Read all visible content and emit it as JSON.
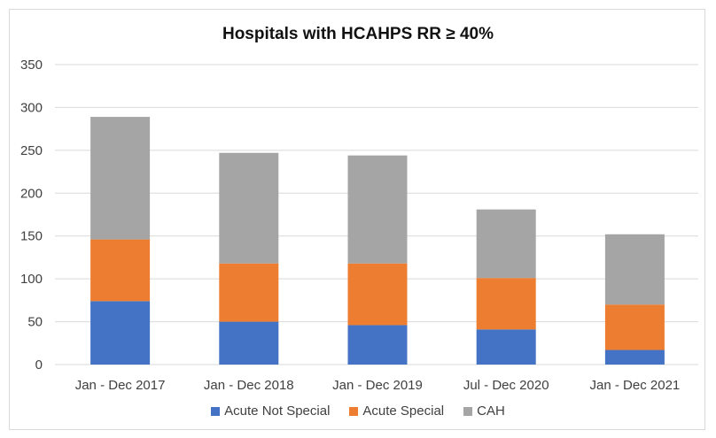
{
  "chart_data": {
    "type": "bar",
    "stacked": true,
    "title": "Hospitals with HCAHPS RR ≥ 40%",
    "xlabel": "",
    "ylabel": "",
    "ylim": [
      0,
      350
    ],
    "yticks": [
      0,
      50,
      100,
      150,
      200,
      250,
      300,
      350
    ],
    "grid": true,
    "legend_position": "bottom",
    "categories": [
      "Jan - Dec 2017",
      "Jan - Dec 2018",
      "Jan - Dec 2019",
      "Jul - Dec 2020",
      "Jan - Dec 2021"
    ],
    "series": [
      {
        "name": "Acute Not Special",
        "color": "#4472c4",
        "values": [
          74,
          50,
          46,
          41,
          17
        ]
      },
      {
        "name": "Acute Special",
        "color": "#ed7d31",
        "values": [
          72,
          68,
          72,
          60,
          53
        ]
      },
      {
        "name": "CAH",
        "color": "#a5a5a5",
        "values": [
          143,
          129,
          126,
          80,
          82
        ]
      }
    ]
  }
}
